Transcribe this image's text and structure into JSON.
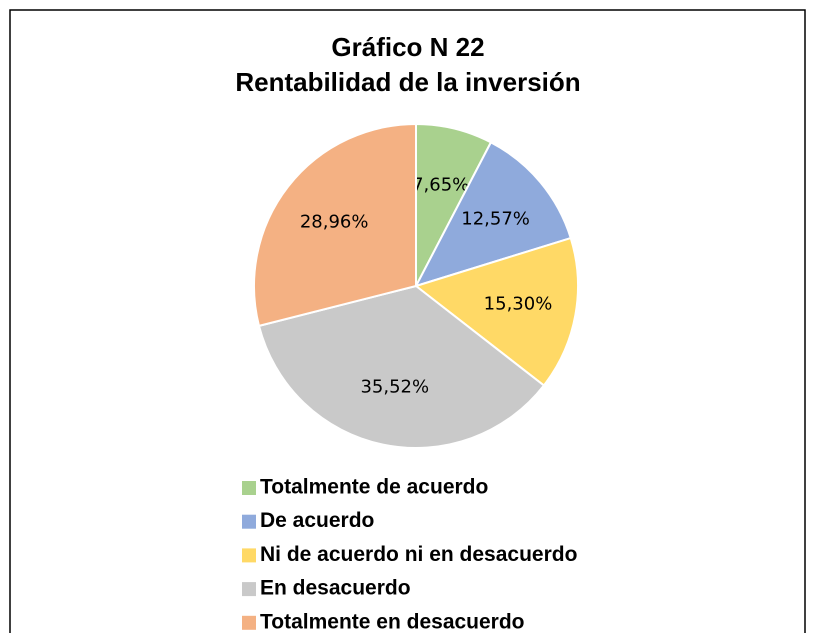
{
  "chart_data": {
    "type": "pie",
    "title": "Gráfico N 22",
    "subtitle": "Rentabilidad de la inversión",
    "categories": [
      "Totalmente de acuerdo",
      "De acuerdo",
      "Ni de acuerdo ni en desacuerdo",
      "En desacuerdo",
      "Totalmente en desacuerdo"
    ],
    "values": [
      7.65,
      12.57,
      15.3,
      35.52,
      28.96
    ],
    "value_labels": [
      "7,65%",
      "12,57%",
      "15,30%",
      "35,52%",
      "28,96%"
    ],
    "colors": [
      "#a9d18e",
      "#8faadc",
      "#ffd966",
      "#c9c9c9",
      "#f4b183"
    ],
    "legend": "bottom"
  }
}
